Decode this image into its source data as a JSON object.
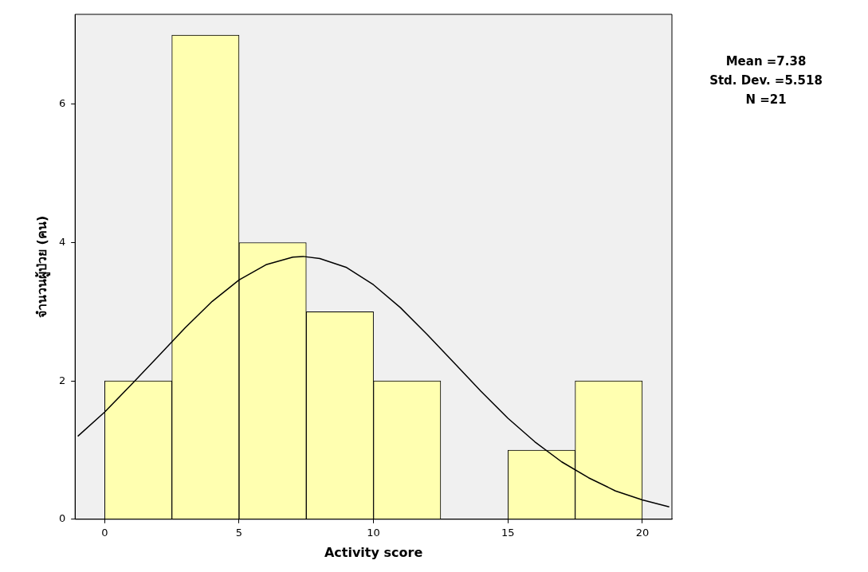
{
  "chart_data": {
    "type": "histogram",
    "xlabel": "Activity score",
    "ylabel": "จำนวนผู้ป่วย (คน)",
    "bins": [
      0,
      2.5,
      5,
      7.5,
      10,
      12.5,
      15,
      17.5,
      20
    ],
    "values": [
      2,
      7,
      4,
      3,
      2,
      0,
      1,
      2
    ],
    "color": "#ffffb0",
    "series": [
      {
        "type": "line",
        "color": "#000000",
        "marker": "none",
        "x": [
          -1,
          0,
          1,
          2,
          3,
          4,
          5,
          6,
          7,
          7.38,
          8,
          9,
          10,
          11,
          12,
          13,
          14,
          15,
          16,
          17,
          18,
          19,
          20,
          21
        ],
        "values": [
          1.2,
          1.55,
          1.95,
          2.36,
          2.77,
          3.15,
          3.46,
          3.68,
          3.79,
          3.8,
          3.77,
          3.64,
          3.39,
          3.06,
          2.67,
          2.26,
          1.85,
          1.46,
          1.12,
          0.83,
          0.6,
          0.41,
          0.28,
          0.18
        ]
      }
    ],
    "xlim": [
      -1.1,
      21.1
    ],
    "xticks": [
      0,
      5,
      10,
      15,
      20
    ],
    "ylim": [
      0,
      7.3
    ],
    "yticks": [
      0,
      2,
      4,
      6
    ],
    "legend": false,
    "annotations": [
      "Mean =7.38",
      "Std. Dev. =5.518",
      "N =21"
    ]
  }
}
